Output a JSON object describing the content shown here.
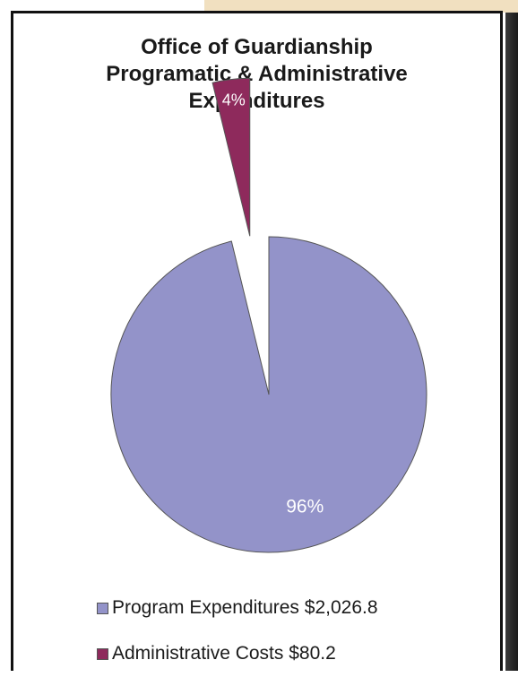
{
  "colors": {
    "program": "#9393c9",
    "admin": "#8e2a5c"
  },
  "chart_data": {
    "type": "pie",
    "title": [
      "Office of Guardianship",
      "Programatic & Administrative",
      "Expenditures"
    ],
    "slices": [
      {
        "label": "Program Expenditures $2,026.8",
        "value": 2026.8,
        "percent_label": "96%"
      },
      {
        "label": "Administrative Costs $80.2",
        "value": 80.2,
        "percent_label": "4%"
      }
    ],
    "legend_placement": "bottom"
  }
}
